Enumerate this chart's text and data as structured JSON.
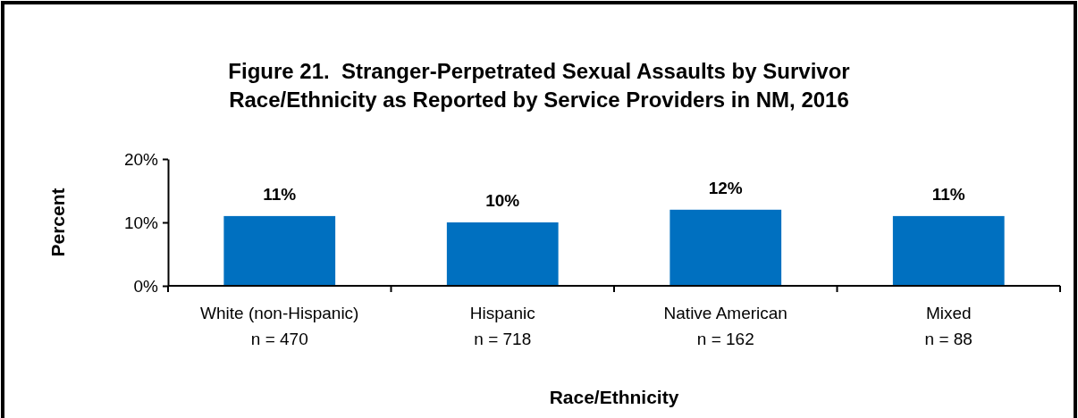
{
  "chart_data": {
    "type": "bar",
    "title": "Figure 21.  Stranger-Perpetrated Sexual Assaults by Survivor\nRace/Ethnicity as Reported by Service Providers in NM, 2016",
    "xlabel": "Race/Ethnicity",
    "ylabel": "Percent",
    "categories": [
      "White (non-Hispanic)\nn = 470",
      "Hispanic\nn = 718",
      "Native American\nn = 162",
      "Mixed\nn = 88"
    ],
    "values": [
      11,
      10,
      12,
      11
    ],
    "value_labels": [
      "11%",
      "10%",
      "12%",
      "11%"
    ],
    "color": "#0070c0",
    "ylim": [
      0,
      20
    ],
    "yticks": [
      {
        "value": 0,
        "label": "0%"
      },
      {
        "value": 10,
        "label": "10%"
      },
      {
        "value": 20,
        "label": "20%"
      }
    ],
    "grid": false
  }
}
